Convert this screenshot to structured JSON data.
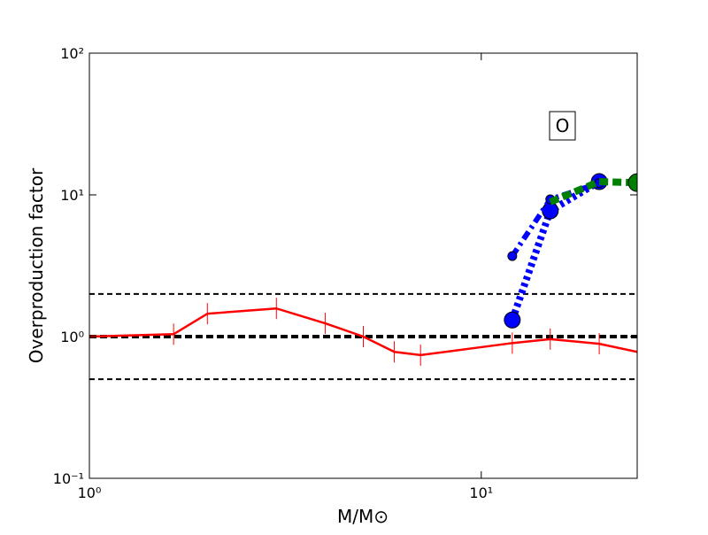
{
  "chart_data": {
    "type": "line",
    "xlabel": "M/M⊙",
    "ylabel": "Overproduction factor",
    "xscale": "log",
    "yscale": "log",
    "xlim": [
      1,
      25
    ],
    "ylim": [
      0.1,
      100
    ],
    "xticks": [
      {
        "value": 1,
        "label": "10⁰"
      },
      {
        "value": 10,
        "label": "10¹"
      }
    ],
    "yticks": [
      {
        "value": 0.1,
        "label": "10⁻¹"
      },
      {
        "value": 1,
        "label": "10⁰"
      },
      {
        "value": 10,
        "label": "10¹"
      },
      {
        "value": 100,
        "label": "10²"
      }
    ],
    "hlines": [
      0.5,
      1,
      2
    ],
    "hline_color": "#000000",
    "annotation": "O",
    "series": [
      {
        "color": "#ff0000",
        "linestyle": "solid",
        "marker": "|",
        "x": [
          1,
          1.64,
          2,
          3,
          4,
          5,
          6,
          7,
          12,
          15,
          20,
          25
        ],
        "values": [
          1.0,
          1.04,
          1.45,
          1.58,
          1.24,
          1.0,
          0.78,
          0.74,
          0.9,
          0.96,
          0.89,
          0.78
        ]
      },
      {
        "color": "#0000ff",
        "linestyle": "dotted",
        "marker": "o",
        "x": [
          12,
          15,
          20
        ],
        "values": [
          1.31,
          7.72,
          12.4
        ]
      },
      {
        "color": "#0000ff",
        "linestyle": "dashdot",
        "marker": "o-small",
        "x": [
          12,
          15,
          20
        ],
        "values": [
          3.7,
          9.3,
          12.1
        ]
      },
      {
        "color": "#008000",
        "linestyle": "dashed",
        "marker": "o-last",
        "x": [
          15,
          20,
          25
        ],
        "values": [
          8.9,
          12.4,
          12.2
        ]
      }
    ]
  }
}
